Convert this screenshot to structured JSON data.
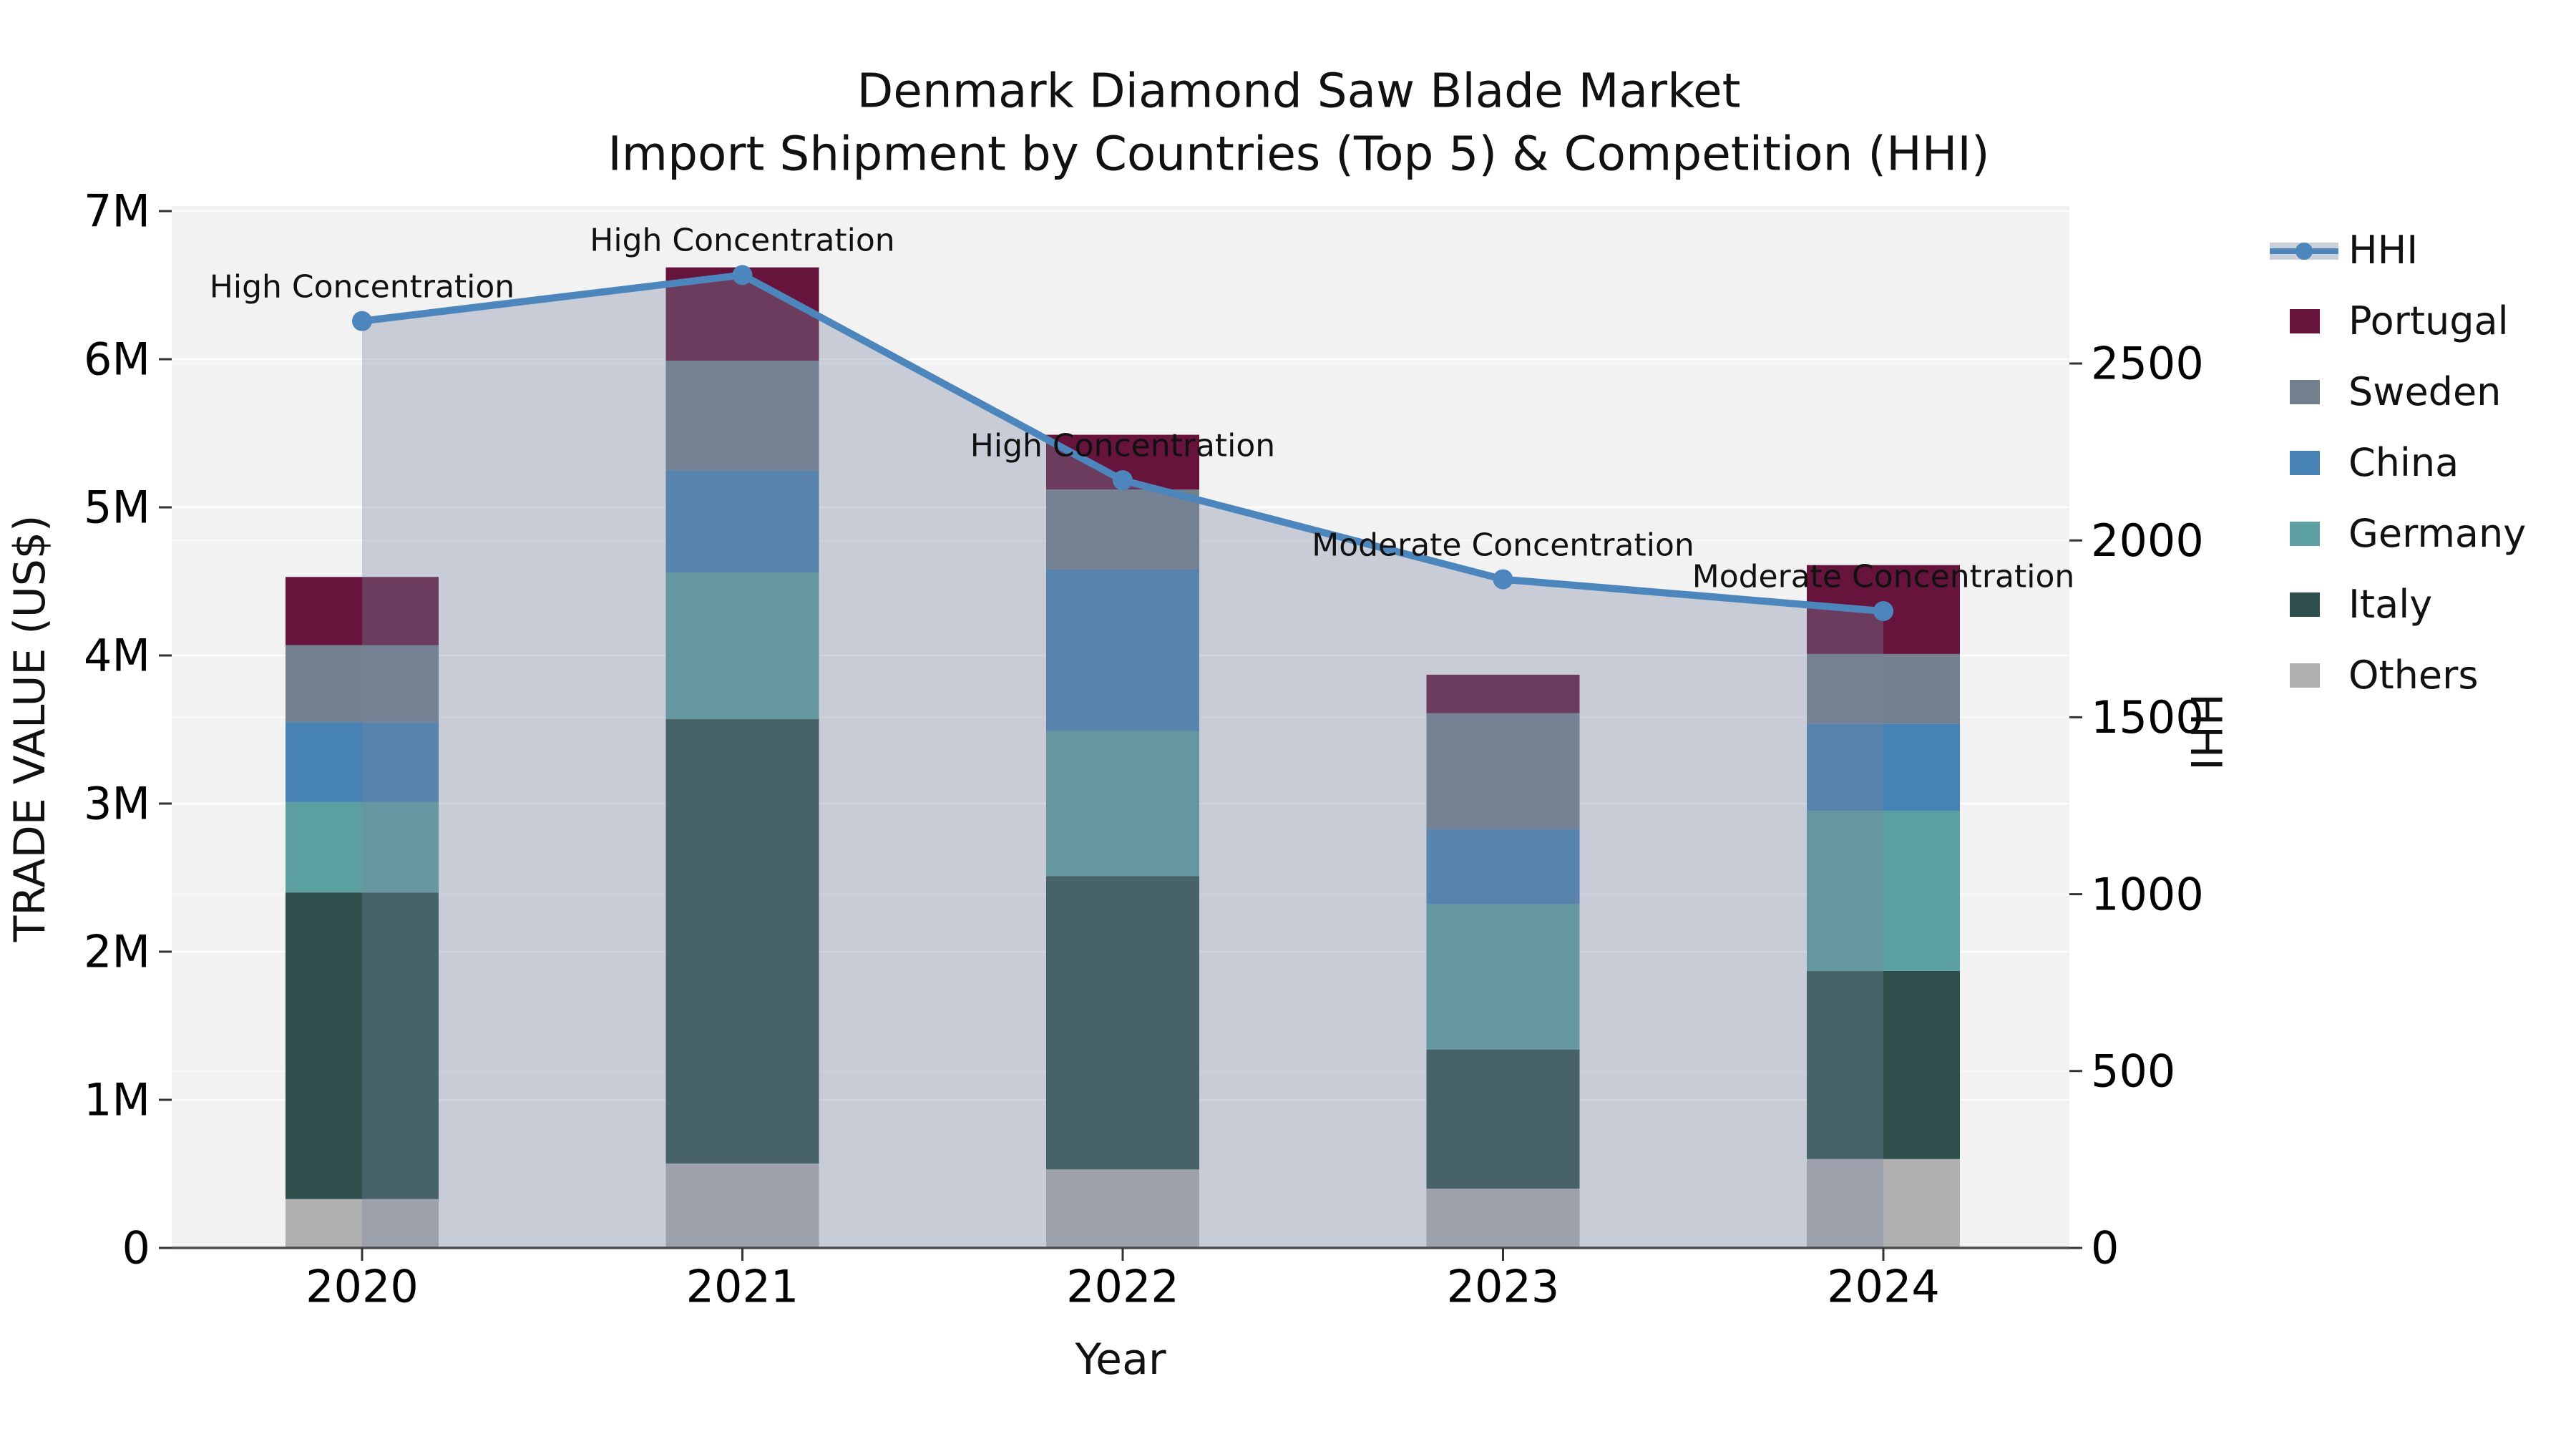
{
  "title": {
    "line1": "Denmark Diamond Saw Blade Market",
    "line2": "Import Shipment by Countries (Top 5) & Competition (HHI)"
  },
  "axes": {
    "x": {
      "label": "Year",
      "ticks": [
        "2020",
        "2021",
        "2022",
        "2023",
        "2024"
      ]
    },
    "y_left": {
      "label": "TRADE VALUE (US$)",
      "ticks": [
        "0",
        "1M",
        "2M",
        "3M",
        "4M",
        "5M",
        "6M",
        "7M"
      ]
    },
    "y_right": {
      "label": "HHI",
      "ticks": [
        "0",
        "500",
        "1000",
        "1500",
        "2000",
        "2500"
      ]
    }
  },
  "legend": [
    {
      "label": "HHI",
      "type": "line",
      "color": "#4C86BC",
      "band_color": "#C9D0D9"
    },
    {
      "label": "Portugal",
      "type": "patch",
      "color": "#66143C"
    },
    {
      "label": "Sweden",
      "type": "patch",
      "color": "#73808D"
    },
    {
      "label": "China",
      "type": "patch",
      "color": "#4682B4"
    },
    {
      "label": "Germany",
      "type": "patch",
      "color": "#5CA0A1"
    },
    {
      "label": "Italy",
      "type": "patch",
      "color": "#2F4F4C"
    },
    {
      "label": "Others",
      "type": "patch",
      "color": "#B0B0B2"
    }
  ],
  "annotations": [
    {
      "category": "2020",
      "text": "High Concentration"
    },
    {
      "category": "2021",
      "text": "High Concentration"
    },
    {
      "category": "2022",
      "text": "High Concentration"
    },
    {
      "category": "2023",
      "text": "Moderate Concentration"
    },
    {
      "category": "2024",
      "text": "Moderate Concentration"
    }
  ],
  "chart_data": {
    "type": "bar",
    "subtype": "stacked-bars-with-line-overlay",
    "title": "Denmark Diamond Saw Blade Market — Import Shipment by Countries (Top 5) & Competition (HHI)",
    "xlabel": "Year",
    "ylabel_left": "TRADE VALUE (US$)",
    "ylabel_right": "HHI",
    "categories": [
      "2020",
      "2021",
      "2022",
      "2023",
      "2024"
    ],
    "bar_units": "millions of US$",
    "stack_order_bottom_to_top": [
      "Others",
      "Italy",
      "Germany",
      "China",
      "Sweden",
      "Portugal"
    ],
    "series": [
      {
        "name": "Others",
        "color": "#B0B0B2",
        "values": [
          0.33,
          0.57,
          0.53,
          0.4,
          0.6
        ]
      },
      {
        "name": "Italy",
        "color": "#2F4F4C",
        "values": [
          2.07,
          3.0,
          1.98,
          0.94,
          1.27
        ]
      },
      {
        "name": "Germany",
        "color": "#5CA0A1",
        "values": [
          0.61,
          0.99,
          0.98,
          0.98,
          1.08
        ]
      },
      {
        "name": "China",
        "color": "#4682B4",
        "values": [
          0.54,
          0.69,
          1.09,
          0.51,
          0.59
        ]
      },
      {
        "name": "Sweden",
        "color": "#73808D",
        "values": [
          0.52,
          0.74,
          0.54,
          0.78,
          0.47
        ]
      },
      {
        "name": "Portugal",
        "color": "#66143C",
        "values": [
          0.46,
          0.63,
          0.37,
          0.26,
          0.6
        ]
      }
    ],
    "bar_totals": [
      4.53,
      6.62,
      5.49,
      3.87,
      4.61
    ],
    "line_series": {
      "name": "HHI",
      "color": "#4C86BC",
      "area_fill": "rgba(119,136,160,0.35)",
      "values": [
        2620,
        2750,
        2170,
        1890,
        1800
      ]
    },
    "ylim_left_millions": [
      0,
      7
    ],
    "ylim_right": [
      0,
      2944
    ],
    "grid": "horizontal-only",
    "legend_position": "right",
    "plot_background": "#F2F2F3"
  }
}
